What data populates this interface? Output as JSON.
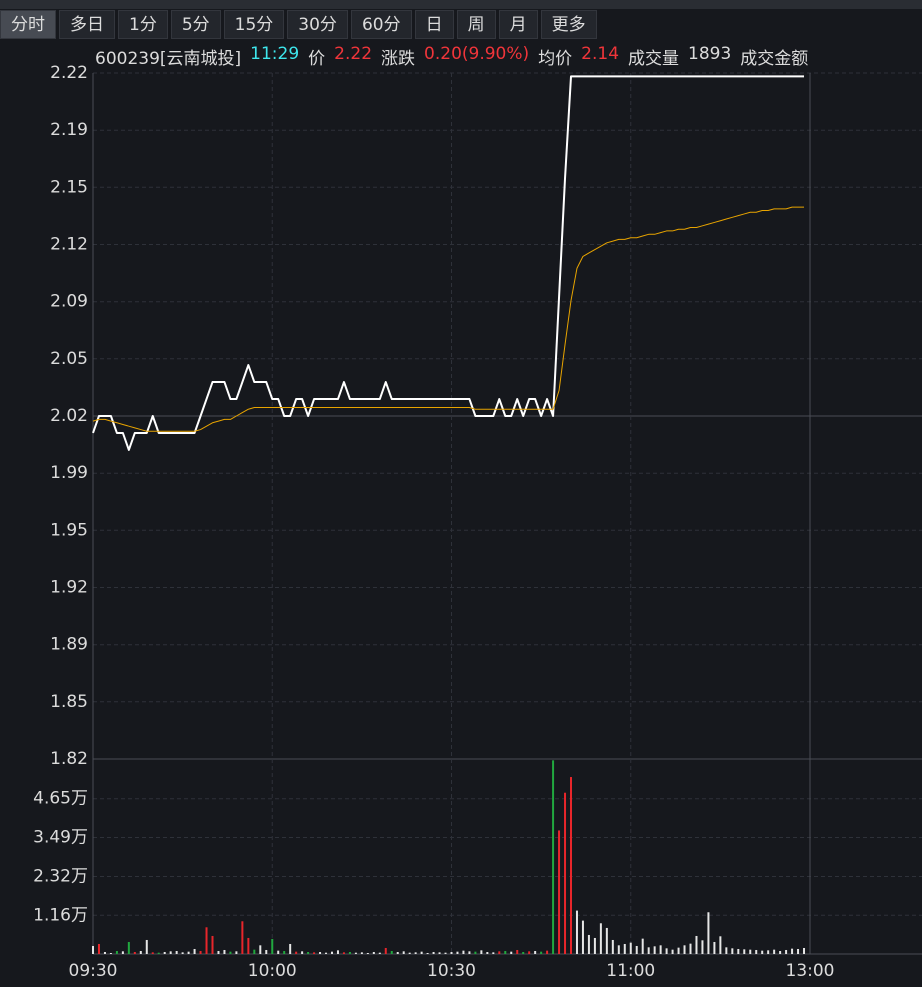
{
  "toolbar": {
    "tabs": [
      "分时",
      "多日",
      "1分",
      "5分",
      "15分",
      "30分",
      "60分",
      "日",
      "周",
      "月",
      "更多"
    ]
  },
  "info": {
    "code": "600239[云南城投]",
    "time": "11:29",
    "price_label": "价",
    "price": "2.22",
    "change_label": "涨跌",
    "change": "0.20(9.90%)",
    "avg_label": "均价",
    "avg": "2.14",
    "volume_label": "成交量",
    "volume": "1893",
    "amount_label": "成交金额"
  },
  "chart_data": {
    "type": "line",
    "up_color": "#e8262b",
    "down_color": "#21a83f",
    "x": [
      0,
      1,
      2,
      3,
      4,
      5,
      6,
      7,
      8,
      9,
      10,
      11,
      12,
      13,
      14,
      15,
      16,
      17,
      18,
      19,
      20,
      21,
      22,
      23,
      24,
      25,
      26,
      27,
      28,
      29,
      30,
      31,
      32,
      33,
      34,
      35,
      36,
      37,
      38,
      39,
      40,
      41,
      42,
      43,
      44,
      45,
      46,
      47,
      48,
      49,
      50,
      51,
      52,
      53,
      54,
      55,
      56,
      57,
      58,
      59,
      60,
      61,
      62,
      63,
      64,
      65,
      66,
      67,
      68,
      69,
      70,
      71,
      72,
      73,
      74,
      75,
      76,
      77,
      78,
      79,
      80,
      81,
      82,
      83,
      84,
      85,
      86,
      87,
      88,
      89,
      90,
      91,
      92,
      93,
      94,
      95,
      96,
      97,
      98,
      99,
      100,
      101,
      102,
      103,
      104,
      105,
      106,
      107,
      108,
      109,
      110,
      111,
      112,
      113,
      114,
      115,
      116,
      117,
      118,
      119
    ],
    "xlim": [
      0,
      120
    ],
    "xticks": [
      {
        "value": 0,
        "label": "09:30"
      },
      {
        "value": 30,
        "label": "10:00"
      },
      {
        "value": 60,
        "label": "10:30"
      },
      {
        "value": 90,
        "label": "11:00"
      },
      {
        "value": 120,
        "label": "13:00"
      }
    ],
    "ylim": [
      1.818,
      2.222
    ],
    "yticks": [
      {
        "value": 1.818,
        "label": "1.82"
      },
      {
        "value": 1.8517,
        "label": "1.85"
      },
      {
        "value": 1.8853,
        "label": "1.89"
      },
      {
        "value": 1.919,
        "label": "1.92"
      },
      {
        "value": 1.9527,
        "label": "1.95"
      },
      {
        "value": 1.9863,
        "label": "1.99"
      },
      {
        "value": 2.02,
        "label": "2.02"
      },
      {
        "value": 2.0537,
        "label": "2.05"
      },
      {
        "value": 2.0873,
        "label": "2.09"
      },
      {
        "value": 2.121,
        "label": "2.12"
      },
      {
        "value": 2.1547,
        "label": "2.15"
      },
      {
        "value": 2.1883,
        "label": "2.19"
      },
      {
        "value": 2.222,
        "label": "2.22"
      }
    ],
    "y2lim": [
      0,
      58100
    ],
    "y2ticks": [
      {
        "value": 11600,
        "label": "1.16万"
      },
      {
        "value": 23200,
        "label": "2.32万"
      },
      {
        "value": 34900,
        "label": "3.49万"
      },
      {
        "value": 46500,
        "label": "4.65万"
      }
    ],
    "series": [
      {
        "name": "价",
        "type": "line",
        "color": "#ffffff",
        "values": [
          2.01,
          2.02,
          2.02,
          2.02,
          2.01,
          2.01,
          2.0,
          2.01,
          2.01,
          2.01,
          2.02,
          2.01,
          2.01,
          2.01,
          2.01,
          2.01,
          2.01,
          2.01,
          2.02,
          2.03,
          2.04,
          2.04,
          2.04,
          2.03,
          2.03,
          2.04,
          2.05,
          2.04,
          2.04,
          2.04,
          2.03,
          2.03,
          2.02,
          2.02,
          2.03,
          2.03,
          2.02,
          2.03,
          2.03,
          2.03,
          2.03,
          2.03,
          2.04,
          2.03,
          2.03,
          2.03,
          2.03,
          2.03,
          2.03,
          2.04,
          2.03,
          2.03,
          2.03,
          2.03,
          2.03,
          2.03,
          2.03,
          2.03,
          2.03,
          2.03,
          2.03,
          2.03,
          2.03,
          2.03,
          2.02,
          2.02,
          2.02,
          2.02,
          2.03,
          2.02,
          2.02,
          2.03,
          2.02,
          2.03,
          2.03,
          2.02,
          2.03,
          2.02,
          2.09,
          2.16,
          2.22,
          2.22,
          2.22,
          2.22,
          2.22,
          2.22,
          2.22,
          2.22,
          2.22,
          2.22,
          2.22,
          2.22,
          2.22,
          2.22,
          2.22,
          2.22,
          2.22,
          2.22,
          2.22,
          2.22,
          2.22,
          2.22,
          2.22,
          2.22,
          2.22,
          2.22,
          2.22,
          2.22,
          2.22,
          2.22,
          2.22,
          2.22,
          2.22,
          2.22,
          2.22,
          2.22,
          2.22,
          2.22,
          2.22,
          2.22
        ]
      },
      {
        "name": "均价",
        "type": "line",
        "color": "#e8a400",
        "values": [
          2.017,
          2.018,
          2.018,
          2.017,
          2.016,
          2.015,
          2.014,
          2.013,
          2.012,
          2.011,
          2.011,
          2.011,
          2.011,
          2.011,
          2.011,
          2.011,
          2.011,
          2.011,
          2.012,
          2.014,
          2.016,
          2.017,
          2.018,
          2.018,
          2.02,
          2.022,
          2.024,
          2.025,
          2.025,
          2.025,
          2.025,
          2.025,
          2.025,
          2.025,
          2.025,
          2.025,
          2.025,
          2.025,
          2.025,
          2.025,
          2.025,
          2.025,
          2.025,
          2.025,
          2.025,
          2.025,
          2.025,
          2.025,
          2.025,
          2.025,
          2.025,
          2.025,
          2.025,
          2.025,
          2.025,
          2.025,
          2.025,
          2.025,
          2.025,
          2.025,
          2.025,
          2.025,
          2.025,
          2.025,
          2.024,
          2.024,
          2.024,
          2.024,
          2.024,
          2.024,
          2.024,
          2.024,
          2.024,
          2.024,
          2.024,
          2.024,
          2.024,
          2.024,
          2.035,
          2.062,
          2.088,
          2.107,
          2.114,
          2.116,
          2.118,
          2.12,
          2.122,
          2.123,
          2.124,
          2.124,
          2.125,
          2.125,
          2.126,
          2.127,
          2.127,
          2.128,
          2.129,
          2.129,
          2.13,
          2.13,
          2.131,
          2.131,
          2.132,
          2.133,
          2.134,
          2.135,
          2.136,
          2.137,
          2.138,
          2.139,
          2.14,
          2.14,
          2.141,
          2.141,
          2.142,
          2.142,
          2.142,
          2.143,
          2.143,
          2.143
        ]
      },
      {
        "name": "成交量",
        "type": "bar",
        "axis": "y2",
        "color": "#e6e6e6",
        "values": [
          2400,
          3000,
          600,
          300,
          900,
          800,
          3600,
          600,
          900,
          4200,
          500,
          400,
          600,
          800,
          900,
          500,
          700,
          1500,
          900,
          8000,
          5400,
          900,
          1200,
          700,
          800,
          9800,
          4800,
          1300,
          2600,
          1200,
          4500,
          1000,
          900,
          3000,
          700,
          800,
          600,
          500,
          600,
          400,
          700,
          1100,
          500,
          600,
          400,
          500,
          300,
          600,
          400,
          1800,
          900,
          600,
          800,
          400,
          500,
          700,
          300,
          600,
          500,
          400,
          600,
          700,
          1000,
          800,
          700,
          1100,
          600,
          500,
          800,
          900,
          700,
          1200,
          600,
          800,
          900,
          700,
          1000,
          58000,
          37000,
          48300,
          53000,
          13000,
          10000,
          5700,
          4800,
          9200,
          7800,
          4200,
          2600,
          3000,
          3400,
          2400,
          4600,
          2000,
          2300,
          2600,
          1700,
          1300,
          1900,
          2600,
          3100,
          5400,
          4100,
          12500,
          3600,
          5300,
          2000,
          1700,
          1500,
          1400,
          1300,
          1200,
          1000,
          1100,
          1300,
          900,
          1200,
          1600,
          1500,
          1800
        ]
      }
    ]
  }
}
